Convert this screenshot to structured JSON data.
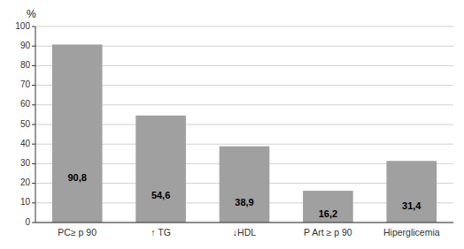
{
  "chart_data": {
    "type": "bar",
    "ylabel": "%",
    "categories": [
      "PC≥ p 90",
      "↑ TG",
      "↓HDL",
      "P Art ≥ p 90",
      "Hiperglicemia"
    ],
    "values": [
      90.8,
      54.6,
      38.9,
      16.2,
      31.4
    ],
    "value_labels": [
      "90,8",
      "54,6",
      "38,9",
      "16,2",
      "31,4"
    ],
    "data_labels": true,
    "color": "#a0a0a0",
    "ylim": [
      0,
      100
    ],
    "yticks": [
      0,
      10,
      20,
      30,
      40,
      50,
      60,
      70,
      80,
      90,
      100
    ],
    "grid": true
  }
}
